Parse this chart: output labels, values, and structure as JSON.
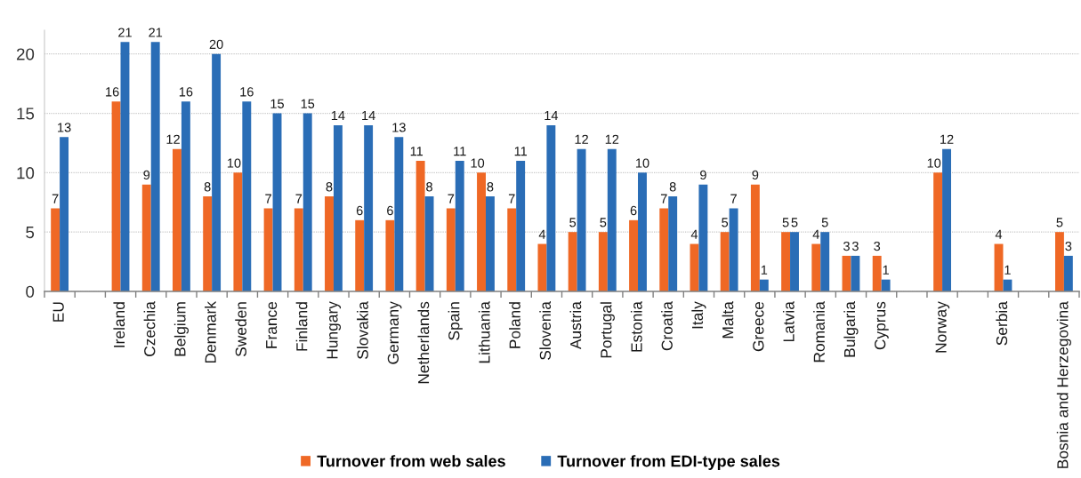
{
  "chart_data": {
    "type": "bar",
    "categories": [
      "EU",
      null,
      "Ireland",
      "Czechia",
      "Belgium",
      "Denmark",
      "Sweden",
      "France",
      "Finland",
      "Hungary",
      "Slovakia",
      "Germany",
      "Netherlands",
      "Spain",
      "Lithuania",
      "Poland",
      "Slovenia",
      "Austria",
      "Portugal",
      "Estonia",
      "Croatia",
      "Italy",
      "Malta",
      "Greece",
      "Latvia",
      "Romania",
      "Bulgaria",
      "Cyprus",
      null,
      "Norway",
      null,
      "Serbia",
      null,
      "Bosnia and Herzegovina"
    ],
    "series": [
      {
        "name": "Turnover from web sales",
        "color": "#ef6825",
        "values": [
          7,
          null,
          16,
          9,
          12,
          8,
          10,
          7,
          7,
          8,
          6,
          6,
          11,
          7,
          10,
          7,
          4,
          5,
          5,
          6,
          7,
          4,
          5,
          9,
          5,
          4,
          3,
          3,
          null,
          10,
          null,
          4,
          null,
          5
        ]
      },
      {
        "name": "Turnover from EDI-type sales",
        "color": "#2a6db6",
        "values": [
          13,
          null,
          21,
          21,
          16,
          20,
          16,
          15,
          15,
          14,
          14,
          13,
          8,
          11,
          8,
          11,
          14,
          12,
          12,
          10,
          8,
          9,
          7,
          1,
          5,
          5,
          3,
          1,
          null,
          12,
          null,
          1,
          null,
          3
        ]
      }
    ],
    "ylim": [
      0,
      22
    ],
    "yticks": [
      0,
      5,
      10,
      15,
      20
    ],
    "grid": "y",
    "legend": "bottom",
    "data_labels": true
  }
}
